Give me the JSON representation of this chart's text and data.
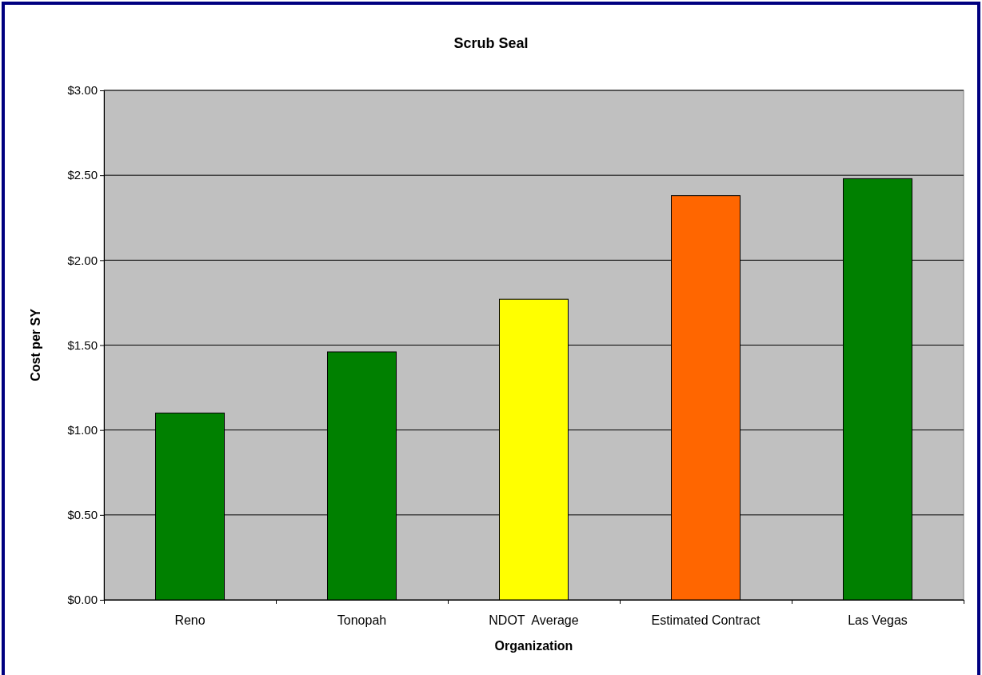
{
  "chart_data": {
    "type": "bar",
    "title": "Scrub Seal",
    "xlabel": "Organization",
    "ylabel": "Cost per SY",
    "categories": [
      "Reno",
      "Tonopah",
      "NDOT  Average",
      "Estimated Contract",
      "Las Vegas"
    ],
    "values": [
      1.1,
      1.46,
      1.77,
      2.38,
      2.48
    ],
    "colors": [
      "#008000",
      "#008000",
      "#ffff00",
      "#ff6600",
      "#008000"
    ],
    "ylim": [
      0,
      3
    ],
    "yticks": [
      {
        "value": 0,
        "label": "$0.00"
      },
      {
        "value": 0.5,
        "label": "$0.50"
      },
      {
        "value": 1,
        "label": "$1.00"
      },
      {
        "value": 1.5,
        "label": "$1.50"
      },
      {
        "value": 2,
        "label": "$2.00"
      },
      {
        "value": 2.5,
        "label": "$2.50"
      },
      {
        "value": 3,
        "label": "$3.00"
      }
    ],
    "grid": "y"
  }
}
